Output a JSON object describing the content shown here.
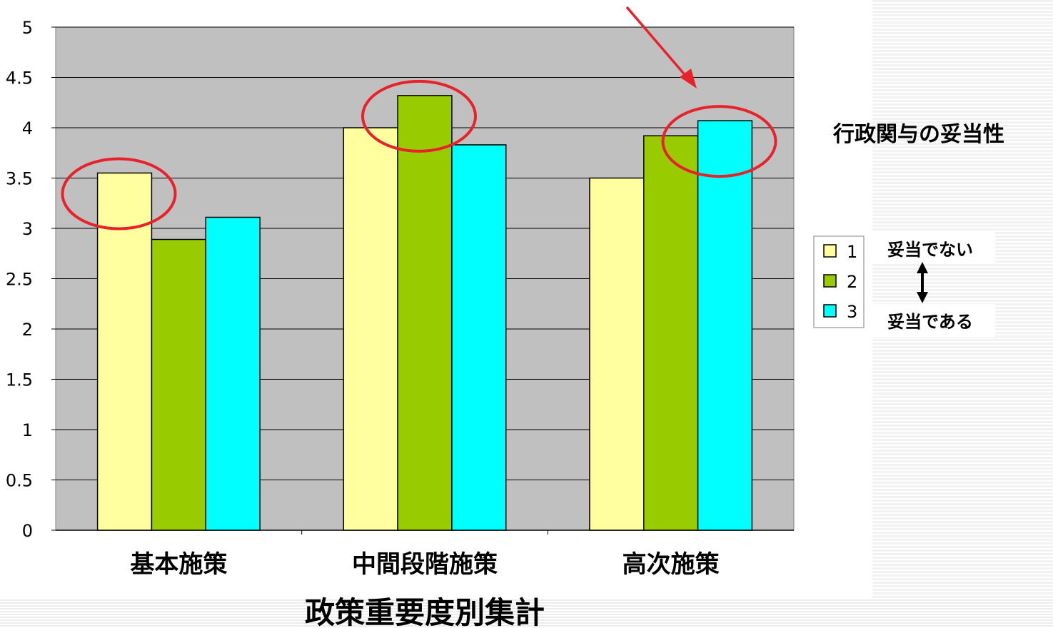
{
  "chart_data": {
    "type": "bar",
    "title": "政策重要度別集計",
    "side_title": "行政関与の妥当性",
    "categories": [
      "基本施策",
      "中間段階施策",
      "高次施策"
    ],
    "series": [
      {
        "name": "1",
        "values": [
          3.55,
          4.0,
          3.5
        ]
      },
      {
        "name": "2",
        "values": [
          2.89,
          4.32,
          3.92
        ]
      },
      {
        "name": "3",
        "values": [
          3.11,
          3.83,
          4.07
        ]
      }
    ],
    "ylim": [
      0,
      5
    ],
    "yticks": [
      "0",
      "0.5",
      "1",
      "1.5",
      "2",
      "2.5",
      "3",
      "3.5",
      "4",
      "4.5",
      "5"
    ],
    "grid": true,
    "legend_position": "right",
    "legend_note_top": "妥当でない",
    "legend_note_bottom": "妥当である",
    "highlighted": [
      {
        "category": "基本施策",
        "series": "1"
      },
      {
        "category": "中間段階施策",
        "series": "2"
      },
      {
        "category": "高次施策",
        "series": "3"
      }
    ],
    "colors": {
      "plot_bg": "#c0c0c0",
      "series": [
        "#ffffa0",
        "#99cc00",
        "#00ffff"
      ],
      "highlight": "#e8222a"
    }
  }
}
